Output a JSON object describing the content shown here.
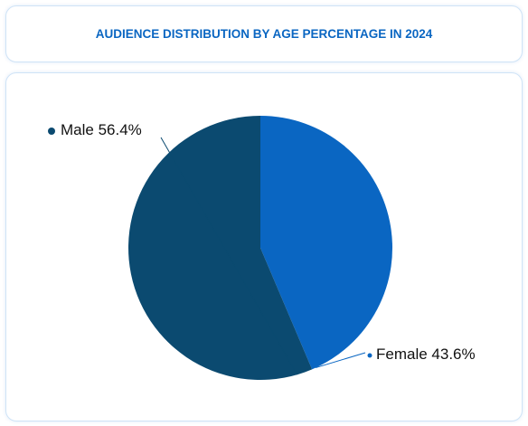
{
  "chart_data": {
    "type": "pie",
    "title": "AUDIENCE DISTRIBUTION BY AGE PERCENTAGE IN 2024",
    "categories": [
      "Female",
      "Male"
    ],
    "values": [
      43.6,
      56.4
    ],
    "value_labels": [
      "43.6%",
      "56.4%"
    ],
    "colors": [
      "#0a66c2",
      "#0b4a70"
    ]
  }
}
